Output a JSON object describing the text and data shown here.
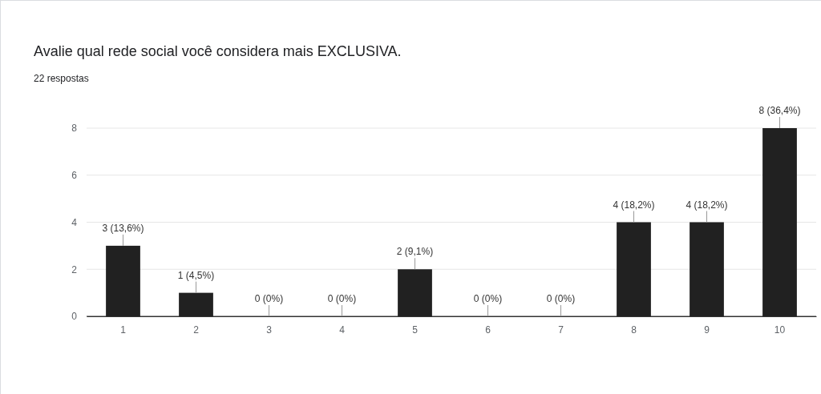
{
  "chart_data": {
    "type": "bar",
    "title": "Avalie qual rede social você considera mais EXCLUSIVA.",
    "subtitle": "22 respostas",
    "categories": [
      "1",
      "2",
      "3",
      "4",
      "5",
      "6",
      "7",
      "8",
      "9",
      "10"
    ],
    "values": [
      3,
      1,
      0,
      0,
      2,
      0,
      0,
      4,
      4,
      8
    ],
    "value_labels": [
      "3 (13,6%)",
      "1 (4,5%)",
      "0 (0%)",
      "0 (0%)",
      "2 (9,1%)",
      "0 (0%)",
      "0 (0%)",
      "4 (18,2%)",
      "4 (18,2%)",
      "8 (36,4%)"
    ],
    "color": "#212121",
    "ylim": [
      0,
      8
    ],
    "yticks": [
      0,
      2,
      4,
      6,
      8
    ],
    "grid": true
  }
}
